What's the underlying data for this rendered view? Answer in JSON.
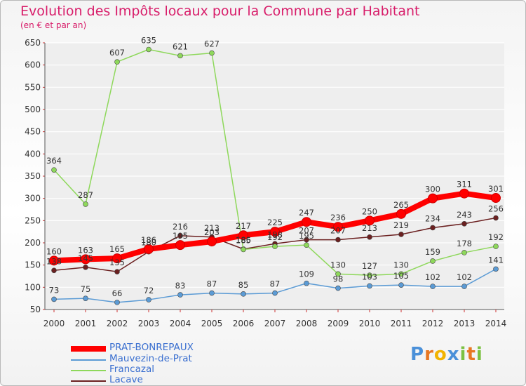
{
  "header": {
    "title": "Evolution des Impôts locaux pour la Commune par Habitant",
    "subtitle": "(en € et par an)"
  },
  "colors": {
    "title": "#d81d6a",
    "prat": "#ff0000",
    "mauvezin": "#5b9bd5",
    "francazal": "#8ed85b",
    "lacave": "#6b2020"
  },
  "chart_data": {
    "type": "line",
    "title": "Evolution des Impôts locaux pour la Commune par Habitant",
    "subtitle": "(en € et par an)",
    "xlabel": "",
    "ylabel": "",
    "x": [
      "2000",
      "2001",
      "2002",
      "2003",
      "2004",
      "2005",
      "2006",
      "2007",
      "2008",
      "2009",
      "2010",
      "2011",
      "2012",
      "2013",
      "2014"
    ],
    "ylim": [
      50,
      650
    ],
    "yticks": [
      "50",
      "100",
      "150",
      "200",
      "250",
      "300",
      "350",
      "400",
      "450",
      "500",
      "550",
      "600",
      "650"
    ],
    "grid": "horizontal",
    "legend_position": "bottom-left",
    "series": [
      {
        "name": "PRAT-BONREPAUX",
        "color": "#ff0000",
        "values": [
          160,
          163,
          165,
          186,
          195,
          203,
          217,
          225,
          247,
          236,
          250,
          265,
          300,
          311,
          301
        ],
        "labels": [
          "160",
          "163",
          "165",
          "",
          "",
          "",
          "217",
          "225",
          "247",
          "236",
          "250",
          "265",
          "300",
          "311",
          "301"
        ]
      },
      {
        "name": "Mauvezin-de-Prat",
        "color": "#5b9bd5",
        "values": [
          73,
          75,
          66,
          72,
          83,
          87,
          85,
          87,
          109,
          98,
          103,
          105,
          102,
          102,
          141
        ],
        "labels": [
          "73",
          "75",
          "66",
          "72",
          "83",
          "87",
          "85",
          "87",
          "109",
          "98",
          "103",
          "105",
          "102",
          "102",
          "141"
        ]
      },
      {
        "name": "Francazal",
        "color": "#8ed85b",
        "values": [
          364,
          287,
          607,
          635,
          621,
          627,
          185,
          192,
          195,
          130,
          127,
          130,
          159,
          178,
          192
        ],
        "labels": [
          "364",
          "287",
          "607",
          "635",
          "621",
          "627",
          "185",
          "192",
          "195",
          "130",
          "127",
          "130",
          "159",
          "178",
          "192"
        ]
      },
      {
        "name": "Lacave",
        "color": "#6b2020",
        "values": [
          138,
          145,
          135,
          180,
          216,
          213,
          186,
          198,
          207,
          207,
          213,
          219,
          234,
          243,
          256
        ],
        "labels": [
          "138",
          "145",
          "135",
          "180",
          "216",
          "213",
          "186",
          "198",
          "207",
          "207",
          "213",
          "219",
          "234",
          "243",
          "256"
        ]
      }
    ],
    "extra_labels": [
      "186",
      "195",
      "203"
    ]
  },
  "logo": {
    "letters": [
      "P",
      "r",
      "o",
      "x",
      "i",
      "t",
      "i"
    ],
    "colors": [
      "#4a90d9",
      "#e87722",
      "#f2b300",
      "#4a90d9",
      "#7cc142",
      "#e87722",
      "#7cc142"
    ]
  }
}
